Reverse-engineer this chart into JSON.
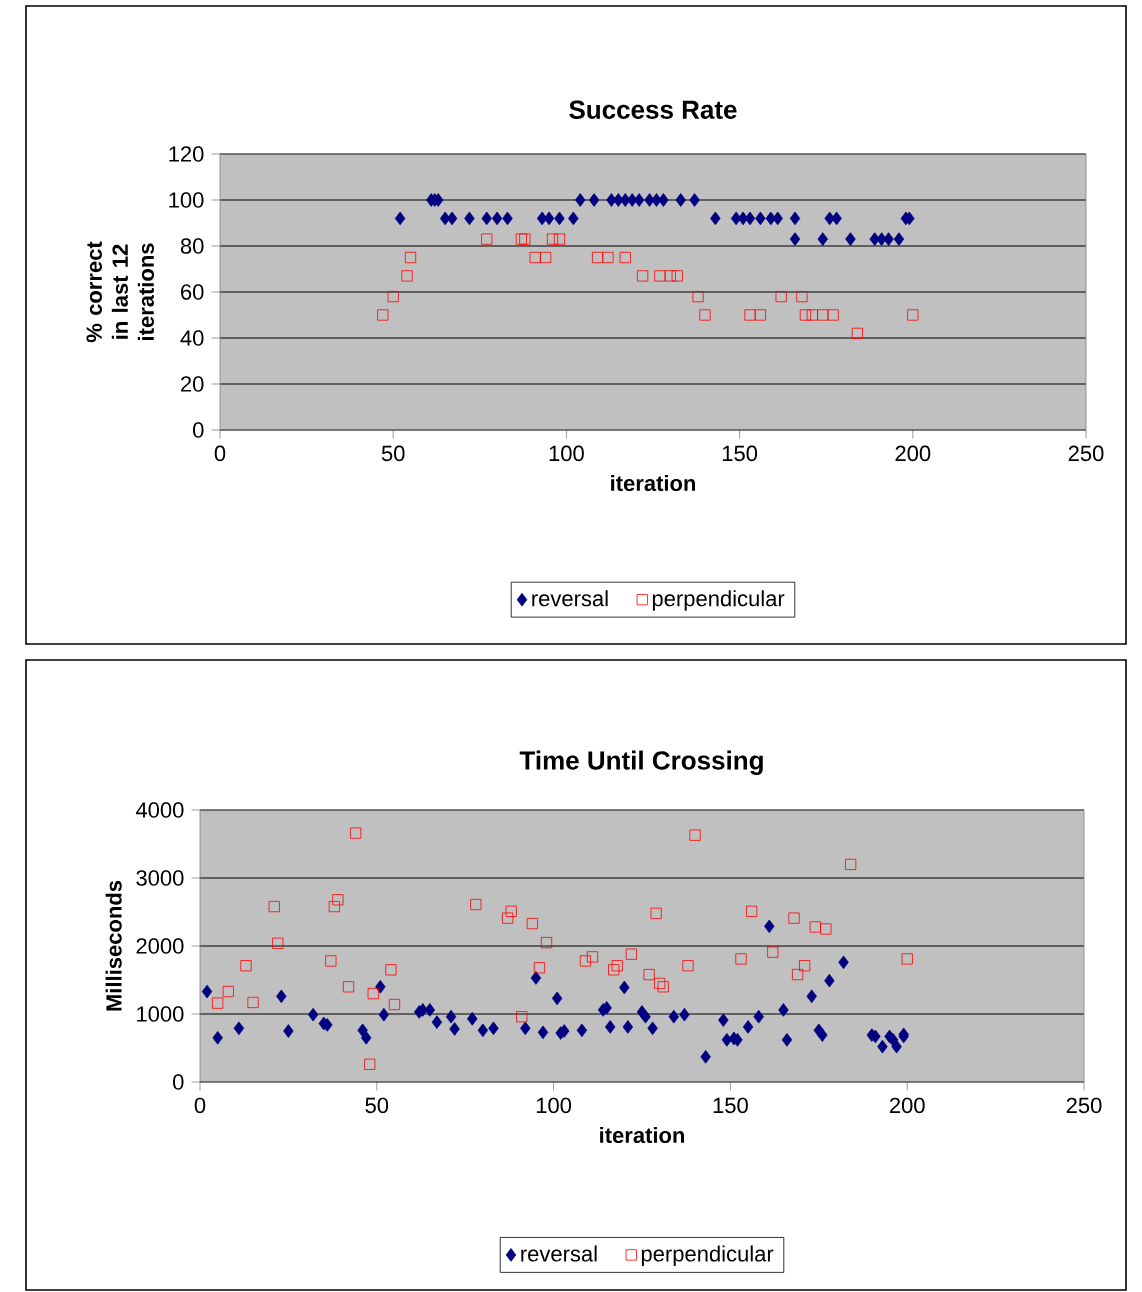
{
  "chart_data": [
    {
      "type": "scatter",
      "title": "Success Rate",
      "xlabel": "iteration",
      "ylabel": "% correct in last 12 iterations",
      "xlim": [
        0,
        250
      ],
      "xticks": [
        0,
        50,
        100,
        150,
        200,
        250
      ],
      "ylim": [
        0,
        120
      ],
      "yticks": [
        0,
        20,
        40,
        60,
        80,
        100,
        120
      ],
      "grid": "y",
      "legend": "bottom",
      "series": [
        {
          "name": "reversal",
          "color": "#000080",
          "marker": "diamond",
          "x": [
            52,
            61,
            62,
            63,
            65,
            67,
            72,
            77,
            80,
            83,
            93,
            95,
            98,
            102,
            104,
            108,
            113,
            115,
            117,
            119,
            121,
            124,
            126,
            128,
            133,
            137,
            143,
            149,
            151,
            153,
            156,
            159,
            161,
            166,
            176,
            178,
            198,
            199,
            166,
            174,
            182,
            189,
            191,
            193,
            196
          ],
          "values": [
            92,
            100,
            100,
            100,
            92,
            92,
            92,
            92,
            92,
            92,
            92,
            92,
            92,
            92,
            100,
            100,
            100,
            100,
            100,
            100,
            100,
            100,
            100,
            100,
            100,
            100,
            92,
            92,
            92,
            92,
            92,
            92,
            92,
            92,
            92,
            92,
            92,
            92,
            83,
            83,
            83,
            83,
            83,
            83,
            83
          ]
        },
        {
          "name": "perpendicular",
          "color": "#ff0000",
          "marker": "square",
          "x": [
            47,
            50,
            54,
            55,
            77,
            87,
            88,
            91,
            94,
            96,
            98,
            109,
            112,
            117,
            122,
            127,
            130,
            132,
            138,
            140,
            153,
            156,
            162,
            168,
            169,
            171,
            174,
            177,
            184,
            200
          ],
          "values": [
            50,
            58,
            67,
            75,
            83,
            83,
            83,
            75,
            75,
            83,
            83,
            75,
            75,
            75,
            67,
            67,
            67,
            67,
            58,
            50,
            50,
            50,
            58,
            58,
            50,
            50,
            50,
            50,
            42,
            50
          ]
        }
      ]
    },
    {
      "type": "scatter",
      "title": "Time Until Crossing",
      "xlabel": "iteration",
      "ylabel": "Milliseconds",
      "xlim": [
        0,
        250
      ],
      "xticks": [
        0,
        50,
        100,
        150,
        200,
        250
      ],
      "ylim": [
        0,
        4000
      ],
      "yticks": [
        0,
        1000,
        2000,
        3000,
        4000
      ],
      "grid": "y",
      "legend": "bottom",
      "series": [
        {
          "name": "reversal",
          "color": "#000080",
          "marker": "diamond",
          "x": [
            2,
            5,
            11,
            23,
            25,
            32,
            35,
            36,
            46,
            47,
            51,
            52,
            62,
            63,
            65,
            67,
            71,
            72,
            77,
            80,
            83,
            92,
            95,
            97,
            101,
            102,
            103,
            108,
            114,
            115,
            116,
            120,
            121,
            125,
            126,
            128,
            134,
            137,
            143,
            148,
            149,
            151,
            152,
            155,
            158,
            161,
            165,
            166,
            173,
            175,
            176,
            178,
            182,
            190,
            191,
            193,
            195,
            196,
            197,
            199,
            199
          ],
          "values": [
            1330,
            650,
            790,
            1260,
            750,
            990,
            860,
            840,
            760,
            650,
            1400,
            990,
            1030,
            1060,
            1060,
            880,
            960,
            780,
            930,
            760,
            790,
            790,
            1530,
            730,
            1230,
            720,
            750,
            760,
            1060,
            1090,
            810,
            1390,
            810,
            1030,
            960,
            790,
            960,
            990,
            370,
            910,
            620,
            640,
            620,
            810,
            960,
            2290,
            1060,
            620,
            1260,
            760,
            690,
            1490,
            1760,
            690,
            670,
            520,
            670,
            620,
            520,
            670,
            700
          ]
        },
        {
          "name": "perpendicular",
          "color": "#ff0000",
          "marker": "square",
          "x": [
            5,
            8,
            13,
            15,
            21,
            22,
            37,
            38,
            39,
            42,
            44,
            48,
            49,
            54,
            55,
            78,
            87,
            88,
            91,
            94,
            96,
            98,
            109,
            111,
            117,
            118,
            122,
            127,
            129,
            130,
            131,
            138,
            140,
            153,
            156,
            162,
            168,
            169,
            171,
            174,
            177,
            184,
            200
          ],
          "values": [
            1160,
            1330,
            1710,
            1170,
            2580,
            2040,
            1780,
            2580,
            2680,
            1400,
            3660,
            260,
            1300,
            1650,
            1140,
            2610,
            2410,
            2510,
            960,
            2330,
            1680,
            2050,
            1780,
            1840,
            1650,
            1710,
            1880,
            1580,
            2480,
            1450,
            1400,
            1710,
            3630,
            1810,
            2510,
            1910,
            2410,
            1580,
            1710,
            2280,
            2250,
            3200,
            1810
          ]
        }
      ]
    }
  ]
}
